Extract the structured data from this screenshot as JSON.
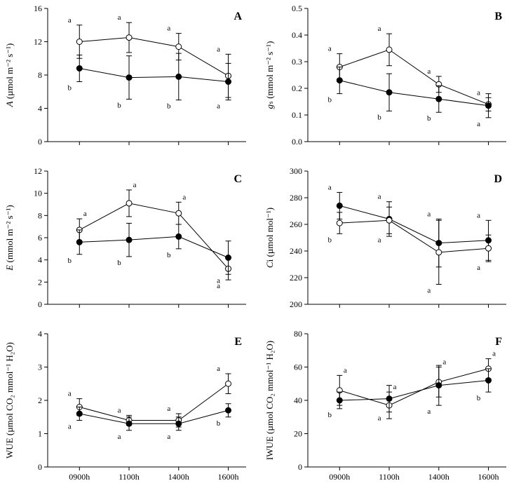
{
  "global": {
    "bg_color": "#ffffff",
    "axis_color": "#000000",
    "text_color": "#000000",
    "font_family": "Times New Roman",
    "open_marker_fill": "#ffffff",
    "open_marker_stroke": "#000000",
    "filled_marker_fill": "#000000",
    "line_color": "#000000",
    "line_width": 1,
    "marker_radius": 4,
    "error_cap": 4,
    "tick_len": 5,
    "x_categories": [
      "0900h",
      "1100h",
      "1400h",
      "1600h"
    ],
    "x_positions": [
      0,
      1,
      2,
      3
    ],
    "axis_fontsize": 13,
    "tick_fontsize": 12,
    "sig_fontsize": 11,
    "panel_label_fontsize": 16
  },
  "panels": [
    {
      "id": "A",
      "row": 0,
      "col": 0,
      "panel_label": "A",
      "ylabel": "A (µmol m⁻² s⁻¹)",
      "ylabel_italic_first": true,
      "ylim": [
        0,
        16
      ],
      "ytick_step": 4,
      "show_xlabels": false,
      "series": [
        {
          "name": "open",
          "marker": "open",
          "x": [
            0,
            1,
            2,
            3
          ],
          "y": [
            12.0,
            12.5,
            11.4,
            7.9
          ],
          "err": [
            2.0,
            1.8,
            1.6,
            2.6
          ],
          "sig": [
            "a",
            "a",
            "a",
            "a"
          ],
          "sig_pos": "above"
        },
        {
          "name": "filled",
          "marker": "filled",
          "x": [
            0,
            1,
            2,
            3
          ],
          "y": [
            8.8,
            7.7,
            7.8,
            7.2
          ],
          "err": [
            1.6,
            2.6,
            2.8,
            2.2
          ],
          "sig": [
            "b",
            "b",
            "b",
            "a"
          ],
          "sig_pos": "below"
        }
      ]
    },
    {
      "id": "B",
      "row": 0,
      "col": 1,
      "panel_label": "B",
      "ylabel": "gₛ (mmol m⁻² s⁻¹)",
      "ylabel_italic_first": true,
      "ylim": [
        0,
        0.5
      ],
      "ytick_step": 0.1,
      "show_xlabels": false,
      "series": [
        {
          "name": "open",
          "marker": "open",
          "x": [
            0,
            1,
            2,
            3
          ],
          "y": [
            0.28,
            0.345,
            0.215,
            0.14
          ],
          "err": [
            0.05,
            0.06,
            0.03,
            0.025
          ],
          "sig": [
            "a",
            "a",
            "a",
            "a"
          ],
          "sig_pos": "above"
        },
        {
          "name": "filled",
          "marker": "filled",
          "x": [
            0,
            1,
            2,
            3
          ],
          "y": [
            0.23,
            0.185,
            0.16,
            0.135
          ],
          "err": [
            0.05,
            0.07,
            0.05,
            0.045
          ],
          "sig": [
            "b",
            "b",
            "b",
            "a"
          ],
          "sig_pos": "below"
        }
      ]
    },
    {
      "id": "C",
      "row": 1,
      "col": 0,
      "panel_label": "C",
      "ylabel": "E (mmol m⁻² s⁻¹)",
      "ylabel_italic_first": true,
      "ylim": [
        0,
        12
      ],
      "ytick_step": 2,
      "show_xlabels": false,
      "series": [
        {
          "name": "open",
          "marker": "open",
          "x": [
            0,
            1,
            2,
            3
          ],
          "y": [
            6.7,
            9.1,
            8.2,
            3.2
          ],
          "err": [
            1.0,
            1.2,
            1.0,
            1.0
          ],
          "sig": [
            "a",
            "a",
            "a",
            "a"
          ],
          "sig_pos": "above-right",
          "sig_last_below": true
        },
        {
          "name": "filled",
          "marker": "filled",
          "x": [
            0,
            1,
            2,
            3
          ],
          "y": [
            5.6,
            5.8,
            6.1,
            4.2
          ],
          "err": [
            1.1,
            1.5,
            1.1,
            1.5
          ],
          "sig": [
            "b",
            "b",
            "b",
            "a"
          ],
          "sig_pos": "below"
        }
      ]
    },
    {
      "id": "D",
      "row": 1,
      "col": 1,
      "panel_label": "D",
      "ylabel": "Ci (µmol mol⁻¹)",
      "ylabel_italic_first": true,
      "ylim": [
        200,
        300
      ],
      "ytick_step": 20,
      "show_xlabels": false,
      "series": [
        {
          "name": "filled",
          "marker": "filled",
          "x": [
            0,
            1,
            2,
            3
          ],
          "y": [
            274,
            264,
            246,
            248
          ],
          "err": [
            10,
            13,
            18,
            15
          ],
          "sig": [
            "a",
            "a",
            "a",
            "a"
          ],
          "sig_pos": "above"
        },
        {
          "name": "open",
          "marker": "open",
          "x": [
            0,
            1,
            2,
            3
          ],
          "y": [
            261,
            263,
            239,
            242
          ],
          "err": [
            8,
            10,
            24,
            10
          ],
          "sig": [
            "b",
            "a",
            "a",
            "a"
          ],
          "sig_pos": "below"
        }
      ]
    },
    {
      "id": "E",
      "row": 2,
      "col": 0,
      "panel_label": "E",
      "ylabel": "WUE (µmol CO₂ mmol⁻¹ H₂O)",
      "ylabel_italic_first": false,
      "ylim": [
        0,
        4
      ],
      "ytick_step": 1,
      "show_xlabels": true,
      "series": [
        {
          "name": "open",
          "marker": "open",
          "x": [
            0,
            1,
            2,
            3
          ],
          "y": [
            1.8,
            1.4,
            1.4,
            2.5
          ],
          "err": [
            0.25,
            0.15,
            0.2,
            0.3
          ],
          "sig": [
            "a",
            "a",
            "a",
            "a"
          ],
          "sig_pos": "above"
        },
        {
          "name": "filled",
          "marker": "filled",
          "x": [
            0,
            1,
            2,
            3
          ],
          "y": [
            1.6,
            1.3,
            1.3,
            1.7
          ],
          "err": [
            0.2,
            0.2,
            0.2,
            0.2
          ],
          "sig": [
            "a",
            "a",
            "a",
            "b"
          ],
          "sig_pos": "below"
        }
      ]
    },
    {
      "id": "F",
      "row": 2,
      "col": 1,
      "panel_label": "F",
      "ylabel": "IWUE (µmol CO₂ mmol⁻¹ H₂O)",
      "ylabel_italic_first": false,
      "ylim": [
        0,
        80
      ],
      "ytick_step": 20,
      "show_xlabels": true,
      "series": [
        {
          "name": "open",
          "marker": "open",
          "x": [
            0,
            1,
            2,
            3
          ],
          "y": [
            46,
            37,
            51,
            59
          ],
          "err": [
            9,
            8,
            9,
            6
          ],
          "sig": [
            "a",
            "a",
            "a",
            "a"
          ],
          "sig_pos": "above-right"
        },
        {
          "name": "filled",
          "marker": "filled",
          "x": [
            0,
            1,
            2,
            3
          ],
          "y": [
            40,
            41,
            49,
            52
          ],
          "err": [
            5,
            8,
            12,
            7
          ],
          "sig": [
            "b",
            "a",
            "a",
            "b"
          ],
          "sig_pos": "below"
        }
      ]
    }
  ]
}
